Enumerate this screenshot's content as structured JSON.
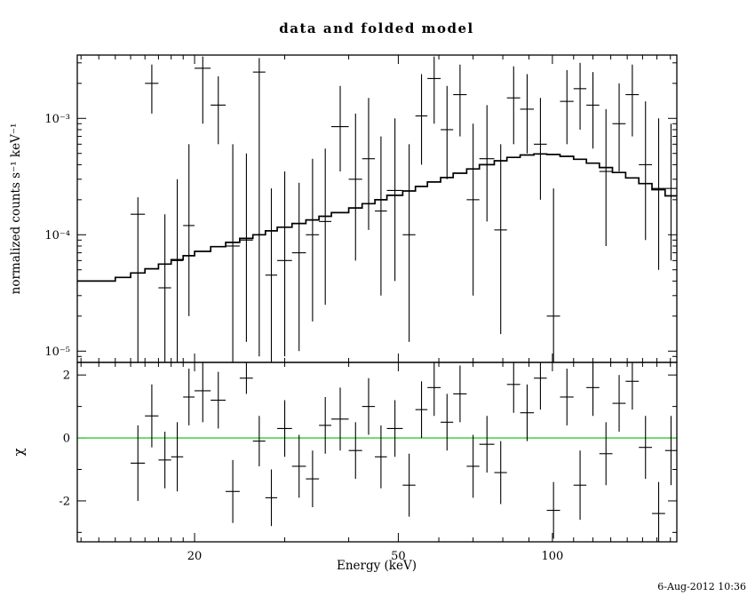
{
  "footer": {
    "timestamp": "6-Aug-2012 10:36"
  },
  "chart_data": {
    "type": "scatter",
    "title": "data and folded model",
    "xlabel": "Energy (keV)",
    "xscale": "log",
    "xlim": [
      11.8,
      175
    ],
    "x_major_ticks": [
      20,
      50,
      100
    ],
    "x_major_tick_labels": [
      "20",
      "50",
      "100"
    ],
    "x_minor_ticks": [
      12,
      13,
      14,
      15,
      16,
      17,
      18,
      19,
      30,
      40,
      60,
      70,
      80,
      90,
      110,
      120,
      130,
      140,
      150,
      160,
      170
    ],
    "colors": {
      "data": "#000000",
      "model": "#000000",
      "zero_line": "#00C000",
      "frame": "#000000"
    },
    "energies": [
      15.5,
      16.5,
      17.5,
      18.5,
      19.5,
      20.75,
      22.25,
      23.75,
      25.25,
      26.75,
      28.25,
      30,
      32,
      34,
      36,
      38.5,
      41.25,
      43.75,
      46.25,
      49.25,
      52.5,
      55.5,
      58.75,
      62.25,
      66,
      70,
      74.5,
      79.25,
      84,
      89.25,
      94.75,
      100.5,
      106.75,
      113.25,
      120,
      127.25,
      135,
      143.25,
      152,
      161.25,
      170.5
    ],
    "energy_halfwidths": [
      0.5,
      0.5,
      0.5,
      0.5,
      0.5,
      0.75,
      0.75,
      0.75,
      0.75,
      0.75,
      0.75,
      1,
      1,
      1,
      1,
      1.5,
      1.25,
      1.25,
      1.25,
      1.75,
      1.5,
      1.5,
      1.75,
      1.75,
      2,
      2,
      2.5,
      2.25,
      2.5,
      2.75,
      2.75,
      3,
      3.25,
      3.25,
      3.5,
      3.75,
      4,
      4.25,
      4.5,
      4.75,
      4.5
    ],
    "panels": [
      {
        "name": "spectrum",
        "ylabel": "normalized counts s⁻¹ keV⁻¹",
        "yscale": "log",
        "ylim": [
          8e-06,
          0.0035
        ],
        "y_major_ticks": [
          1e-05,
          0.0001,
          0.001
        ],
        "y_major_tick_labels": [
          "10⁻⁵",
          "10⁻⁴",
          "10⁻³"
        ],
        "y_minor_ticks": [
          9e-06,
          2e-05,
          3e-05,
          4e-05,
          5e-05,
          6e-05,
          7e-05,
          8e-05,
          9e-05,
          0.0002,
          0.0003,
          0.0004,
          0.0005,
          0.0006,
          0.0007,
          0.0008,
          0.0009,
          0.002,
          0.003
        ],
        "counts": [
          0.00015,
          0.002,
          3.5e-05,
          6e-05,
          0.00012,
          0.0027,
          0.0013,
          8e-05,
          9e-05,
          0.0025,
          4.5e-05,
          6e-05,
          7e-05,
          0.0001,
          0.00013,
          0.00085,
          0.0003,
          0.00045,
          0.00016,
          0.00024,
          0.0001,
          0.00105,
          0.0022,
          0.0008,
          0.0016,
          0.0002,
          0.00045,
          0.00011,
          0.0015,
          0.0012,
          0.0006,
          2e-05,
          0.0014,
          0.0018,
          0.0013,
          0.00035,
          0.0009,
          0.0016,
          0.0004,
          0.00025,
          0.00025
        ],
        "counts_lo": [
          5e-06,
          0.0011,
          6e-06,
          8e-06,
          2e-05,
          0.0009,
          0.0006,
          8e-06,
          1.2e-05,
          9e-06,
          6e-06,
          9e-06,
          1e-05,
          1.8e-05,
          2.5e-05,
          0.00035,
          6e-05,
          0.00011,
          3e-05,
          4e-05,
          1.2e-05,
          0.0004,
          0.0009,
          0.0003,
          0.0007,
          3e-05,
          0.00013,
          1.4e-05,
          0.0006,
          0.0005,
          0.0002,
          3e-06,
          0.0006,
          0.0008,
          0.00055,
          8e-05,
          0.00035,
          0.0007,
          9e-05,
          5e-05,
          6e-05
        ],
        "counts_hi": [
          0.00021,
          0.0029,
          0.00015,
          0.0003,
          0.0006,
          0.0034,
          0.0023,
          0.0006,
          0.0005,
          0.0033,
          0.00025,
          0.00035,
          0.00028,
          0.00045,
          0.00055,
          0.0019,
          0.0011,
          0.0015,
          0.0007,
          0.001,
          0.0006,
          0.0024,
          0.0034,
          0.0019,
          0.0029,
          0.0009,
          0.0013,
          0.0006,
          0.0028,
          0.0024,
          0.0015,
          0.00025,
          0.0026,
          0.003,
          0.0025,
          0.0012,
          0.002,
          0.0029,
          0.0014,
          0.001,
          0.0009
        ],
        "model": {
          "edges": [
            11.8,
            13,
            14,
            15,
            16,
            17,
            18,
            19,
            20,
            21.5,
            23,
            24.5,
            26,
            27.5,
            29,
            31,
            33,
            35,
            37,
            40,
            42.5,
            45,
            47.5,
            51,
            54,
            57,
            60.5,
            64,
            68,
            72,
            77,
            81.5,
            86.5,
            92,
            97.5,
            103.5,
            110,
            116.5,
            123.5,
            131,
            139,
            147.5,
            156.5,
            166,
            175
          ],
          "values": [
            4e-05,
            4e-05,
            4.3e-05,
            4.7e-05,
            5.1e-05,
            5.6e-05,
            6.1e-05,
            6.6e-05,
            7.2e-05,
            7.9e-05,
            8.6e-05,
            9.3e-05,
            0.0001,
            0.000108,
            0.000116,
            0.000125,
            0.000134,
            0.000144,
            0.000155,
            0.00017,
            0.000185,
            0.0002,
            0.000218,
            0.000238,
            0.00026,
            0.000284,
            0.00031,
            0.000338,
            0.000368,
            0.0004,
            0.000432,
            0.000462,
            0.000485,
            0.000495,
            0.00049,
            0.000472,
            0.000445,
            0.000412,
            0.000378,
            0.000343,
            0.000308,
            0.000275,
            0.000244,
            0.000216
          ]
        }
      },
      {
        "name": "residuals",
        "ylabel": "χ",
        "yscale": "linear",
        "ylim": [
          -3.3,
          2.4
        ],
        "y_major_ticks": [
          -2,
          0,
          2
        ],
        "y_major_tick_labels": [
          "-2",
          "0",
          "2"
        ],
        "y_minor_ticks": [
          -3,
          -1,
          1
        ],
        "chi": [
          -0.8,
          0.7,
          -0.7,
          -0.6,
          1.3,
          1.5,
          1.2,
          -1.7,
          1.9,
          -0.1,
          -1.9,
          0.3,
          -0.9,
          -1.3,
          0.4,
          0.6,
          -0.4,
          1.0,
          -0.6,
          0.3,
          -1.5,
          0.9,
          1.6,
          0.5,
          1.4,
          -0.9,
          -0.2,
          -1.1,
          1.7,
          0.8,
          1.9,
          -2.3,
          1.3,
          -1.5,
          1.6,
          -0.5,
          1.1,
          1.8,
          -0.3,
          -2.4,
          -0.4
        ],
        "chi_err": [
          1.2,
          1.0,
          0.9,
          1.1,
          0.9,
          1.0,
          0.9,
          1.0,
          0.5,
          0.8,
          0.9,
          0.9,
          1.0,
          0.9,
          0.9,
          1.0,
          0.9,
          0.9,
          1.0,
          0.9,
          1.0,
          0.9,
          0.9,
          0.9,
          0.9,
          1.0,
          0.9,
          1.0,
          0.9,
          0.9,
          1.0,
          0.9,
          0.9,
          1.1,
          0.9,
          1.0,
          0.9,
          0.9,
          1.0,
          1.0,
          1.1
        ]
      }
    ]
  }
}
